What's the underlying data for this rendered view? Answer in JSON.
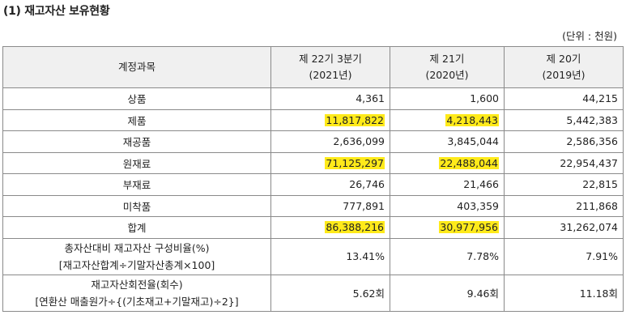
{
  "title": "(1) 재고자산 보유현황",
  "unit_note": "(단위 : 천원)",
  "colors": {
    "highlight": "#ffea1a",
    "header_bg": "#f0f0f0",
    "border": "#8a8a8a"
  },
  "header": {
    "account": "계정과목",
    "periods": [
      {
        "line1": "제 22기 3분기",
        "line2": "(2021년)"
      },
      {
        "line1": "제 21기",
        "line2": "(2020년)"
      },
      {
        "line1": "제 20기",
        "line2": "(2019년)"
      }
    ]
  },
  "rows": [
    {
      "label": "상품",
      "values": [
        "4,361",
        "1,600",
        "44,215"
      ],
      "highlighted": [
        false,
        false,
        false
      ]
    },
    {
      "label": "제품",
      "values": [
        "11,817,822",
        "4,218,443",
        "5,442,383"
      ],
      "highlighted": [
        true,
        true,
        false
      ]
    },
    {
      "label": "재공품",
      "values": [
        "2,636,099",
        "3,845,044",
        "2,586,356"
      ],
      "highlighted": [
        false,
        false,
        false
      ]
    },
    {
      "label": "원재료",
      "values": [
        "71,125,297",
        "22,488,044",
        "22,954,437"
      ],
      "highlighted": [
        true,
        true,
        false
      ]
    },
    {
      "label": "부재료",
      "values": [
        "26,746",
        "21,466",
        "22,815"
      ],
      "highlighted": [
        false,
        false,
        false
      ]
    },
    {
      "label": "미착품",
      "values": [
        "777,891",
        "403,359",
        "211,868"
      ],
      "highlighted": [
        false,
        false,
        false
      ]
    },
    {
      "label": "합계",
      "values": [
        "86,388,216",
        "30,977,956",
        "31,262,074"
      ],
      "highlighted": [
        true,
        true,
        false
      ]
    }
  ],
  "ratio_row": {
    "label_line1": "총자산대비 재고자산 구성비율(%)",
    "label_line2": "[재고자산합계÷기말자산총계×100]",
    "values": [
      "13.41%",
      "7.78%",
      "7.91%"
    ]
  },
  "turnover_row": {
    "label_line1": "재고자산회전율(회수)",
    "label_line2": "[연환산 매출원가÷{(기초재고+기말재고)÷2}]",
    "values": [
      "5.62회",
      "9.46회",
      "11.18회"
    ]
  }
}
